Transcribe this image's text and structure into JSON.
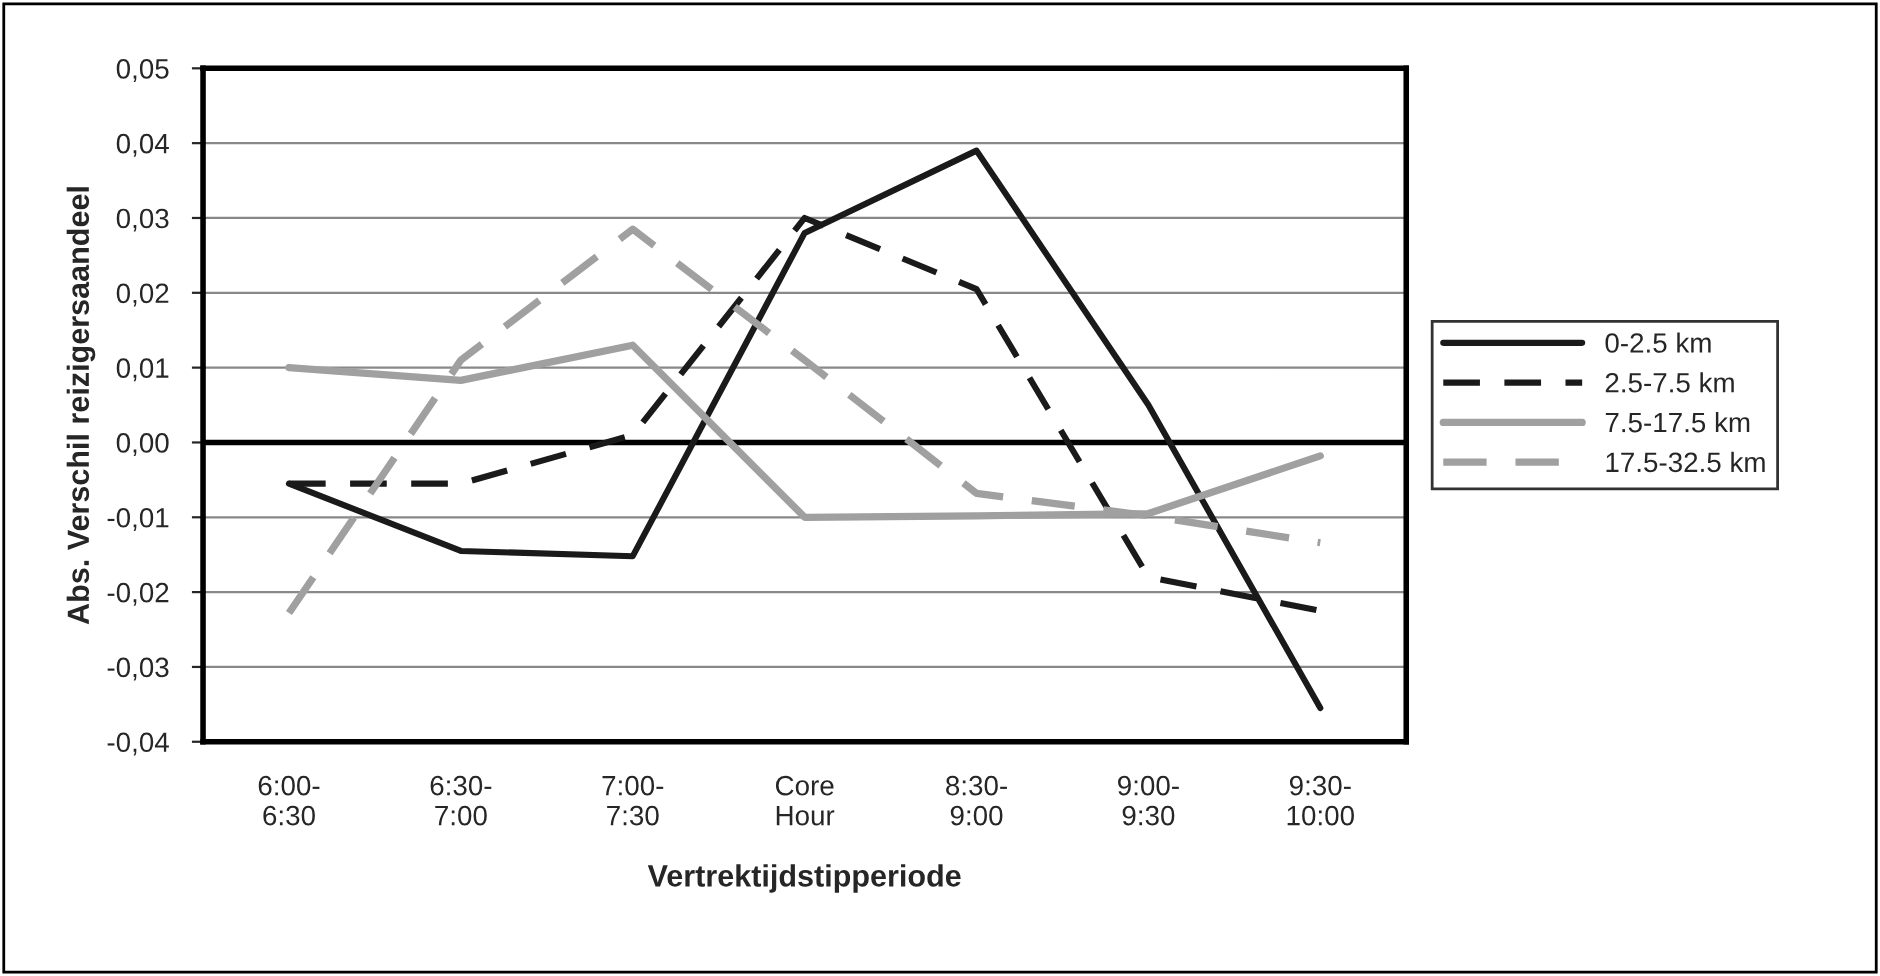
{
  "chart_data": {
    "type": "line",
    "xlabel": "Vertrektijdstipperiode",
    "ylabel": "Abs. Verschil reizigersaandeel",
    "categories": [
      "6:00-\n6:30",
      "6:30-\n7:00",
      "7:00-\n7:30",
      "Core\nHour",
      "8:30-\n9:00",
      "9:00-\n9:30",
      "9:30-\n10:00"
    ],
    "series": [
      {
        "name": "0-2.5 km",
        "color": "#1a1a1a",
        "line_style": "solid",
        "values": [
          -0.0055,
          -0.0145,
          -0.0152,
          0.028,
          0.039,
          0.005,
          -0.0355
        ]
      },
      {
        "name": "2.5-7.5 km",
        "color": "#1a1a1a",
        "line_style": "dashed",
        "values": [
          -0.0055,
          -0.0055,
          0.001,
          0.03,
          0.0205,
          -0.018,
          -0.0225
        ]
      },
      {
        "name": "7.5-17.5 km",
        "color": "#a0a0a0",
        "line_style": "solid",
        "values": [
          0.01,
          0.0083,
          0.013,
          -0.01,
          -0.0098,
          -0.0095,
          -0.0018
        ]
      },
      {
        "name": "17.5-32.5 km",
        "color": "#a0a0a0",
        "line_style": "dashed",
        "values": [
          -0.0228,
          0.011,
          0.0285,
          0.011,
          -0.0068,
          -0.0098,
          -0.0134
        ]
      }
    ],
    "ylim": [
      -0.04,
      0.05
    ],
    "yticks": [
      {
        "value": -0.04,
        "label": "-0,04"
      },
      {
        "value": -0.03,
        "label": "-0,03"
      },
      {
        "value": -0.02,
        "label": "-0,02"
      },
      {
        "value": -0.01,
        "label": "-0,01"
      },
      {
        "value": 0,
        "label": "0,00"
      },
      {
        "value": 0.01,
        "label": "0,01"
      },
      {
        "value": 0.02,
        "label": "0,02"
      },
      {
        "value": 0.03,
        "label": "0,03"
      },
      {
        "value": 0.04,
        "label": "0,04"
      },
      {
        "value": 0.05,
        "label": "0,05"
      }
    ],
    "ref_lines": [
      {
        "axis": "y",
        "value": 0,
        "color": "#000000",
        "line_style": "solid"
      }
    ],
    "grid": "y",
    "legend": "right",
    "marker": "none"
  }
}
